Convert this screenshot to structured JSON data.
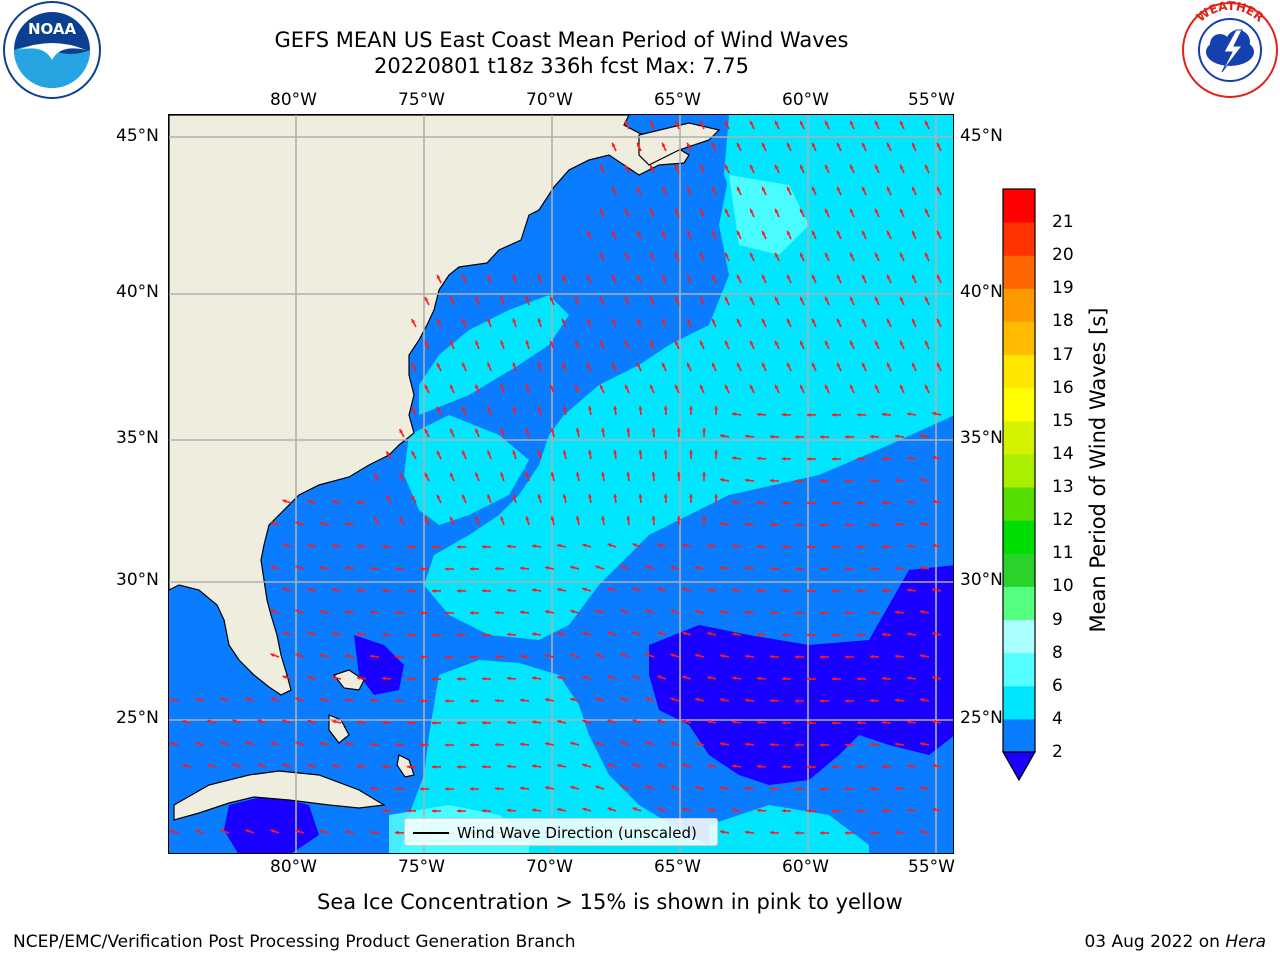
{
  "header": {
    "title_line1": "GEFS MEAN US East Coast Mean Period of Wind Waves",
    "title_line2": "20220801 t18z 336h fcst   Max: 7.75"
  },
  "logos": {
    "left": {
      "name": "noaa-logo",
      "text": "NOAA",
      "ring_text": "NATIONAL OCEANIC AND ATMOSPHERIC ADMINISTRATION · U.S. DEPARTMENT OF COMMERCE",
      "colors": [
        "#0b3f8f",
        "#26a3e1",
        "#ffffff"
      ]
    },
    "right": {
      "name": "nws-logo",
      "ring_text": "NATIONAL WEATHER SERVICE",
      "colors": [
        "#e32119",
        "#1540b0",
        "#ffffff"
      ]
    }
  },
  "map": {
    "lon_ticks": [
      "80°W",
      "75°W",
      "70°W",
      "65°W",
      "60°W",
      "55°W"
    ],
    "lat_ticks": [
      "45°N",
      "40°N",
      "35°N",
      "30°N",
      "25°N"
    ],
    "colors": {
      "land": "#efedde",
      "grid": "#b0b0b0",
      "arrow": "#ff1a1a",
      "coast": "#000000"
    },
    "legend_label": "Wind Wave Direction (unscaled)"
  },
  "colorbar": {
    "label": "Mean Period of Wind Waves [s]",
    "ticks": [
      "2",
      "4",
      "6",
      "8",
      "9",
      "10",
      "11",
      "12",
      "13",
      "14",
      "15",
      "16",
      "17",
      "18",
      "19",
      "20",
      "21"
    ],
    "colors": [
      "#0a7cff",
      "#00e6ff",
      "#55ffff",
      "#aaffff",
      "#55ff80",
      "#2ad22a",
      "#00dd00",
      "#55dd00",
      "#aaee00",
      "#d4f200",
      "#ffff00",
      "#ffe600",
      "#ffbb00",
      "#ff9900",
      "#ff6600",
      "#ff3300",
      "#ff0000"
    ],
    "under_color": "#1a00ff"
  },
  "footer": {
    "note": "Sea Ice Concentration > 15% is shown in pink to yellow",
    "left": "NCEP/EMC/Verification Post Processing Product Generation Branch",
    "right_prefix": "03 Aug 2022 on ",
    "right_machine": "Hera"
  }
}
